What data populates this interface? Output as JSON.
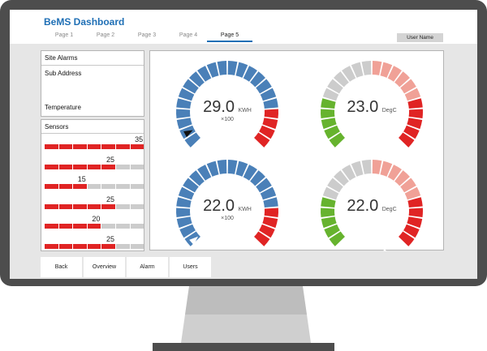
{
  "header": {
    "title": "BeMS Dashboard",
    "tabs": [
      {
        "label": "Page 1",
        "active": false
      },
      {
        "label": "Page 2",
        "active": false
      },
      {
        "label": "Page 3",
        "active": false
      },
      {
        "label": "Page 4",
        "active": false
      },
      {
        "label": "Page 5",
        "active": true
      }
    ],
    "user_label": "User Name"
  },
  "site_alarms": {
    "title": "Site Alarms",
    "sub_address_label": "Sub Address",
    "temperature_label": "Temperature"
  },
  "sensors": {
    "title": "Sensors",
    "rows": [
      {
        "value": "35",
        "filled": 7
      },
      {
        "value": "25",
        "filled": 5
      },
      {
        "value": "15",
        "filled": 3
      },
      {
        "value": "25",
        "filled": 5
      },
      {
        "value": "20",
        "filled": 4
      },
      {
        "value": "25",
        "filled": 5
      }
    ],
    "segments_per_row": 7
  },
  "gauges": [
    {
      "value": "29.0",
      "unit": "KWH",
      "multiplier": "×100",
      "scheme": "energy",
      "level": 0.04
    },
    {
      "value": "23.0",
      "unit": "DegC",
      "multiplier": "",
      "scheme": "temperature",
      "level": 0.5
    },
    {
      "value": "22.0",
      "unit": "KWH",
      "multiplier": "×100",
      "scheme": "energy",
      "level": 0.02
    },
    {
      "value": "22.0",
      "unit": "DegC",
      "multiplier": "",
      "scheme": "temperature",
      "level": 0.44
    }
  ],
  "colors": {
    "blue": "#4a80b8",
    "red": "#e02424",
    "green": "#66b32e",
    "grey": "#cccccc",
    "pink": "#f0a197",
    "accent": "#1f6fb5"
  },
  "nav_buttons": [
    {
      "label": "Back"
    },
    {
      "label": "Overview"
    },
    {
      "label": "Alarm"
    },
    {
      "label": "Users"
    }
  ]
}
